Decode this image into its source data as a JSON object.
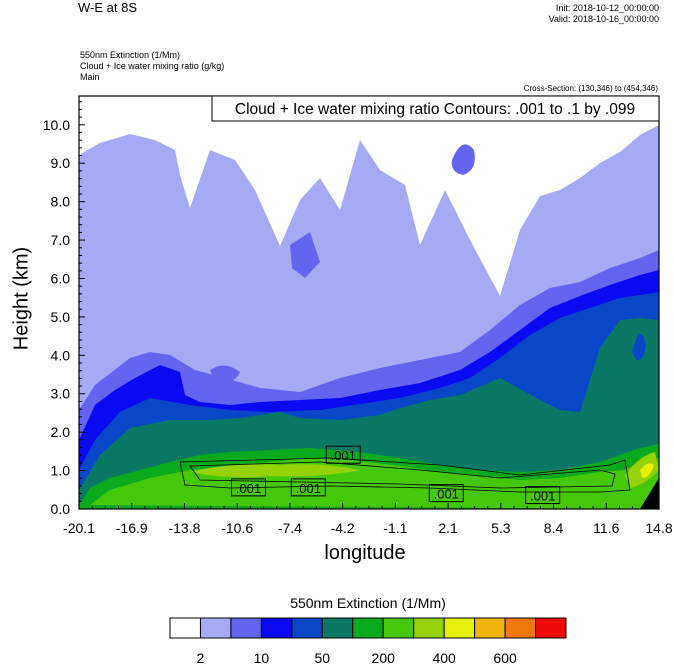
{
  "header": {
    "title": "W-E at 8S",
    "init": "Init: 2018-10-12_00:00:00",
    "valid": "Valid: 2018-10-16_00:00:00",
    "subtitle_lines": [
      "550nm Extinction   (1/Mm)",
      "Cloud + Ice water mixing ratio   (g/kg)",
      "Main"
    ],
    "cross_section": "Cross-Section: (130,346) to (454,346)"
  },
  "chart_data": {
    "type": "contour",
    "xlabel": "longitude",
    "ylabel": "Height (km)",
    "x_ticks": [
      "-20.1",
      "-16.9",
      "-13.8",
      "-10.6",
      "-7.4",
      "-4.2",
      "-1.1",
      "2.1",
      "5.3",
      "8.4",
      "11.6",
      "14.8"
    ],
    "y_ticks": [
      "0.0",
      "1.0",
      "2.0",
      "3.0",
      "4.0",
      "5.0",
      "6.0",
      "7.0",
      "8.0",
      "9.0",
      "10.0"
    ],
    "xlim": [
      -20.1,
      14.8
    ],
    "ylim": [
      0.0,
      10.75
    ],
    "contour_legend": "Cloud + Ice water mixing ratio Contours: .001 to .1 by .099",
    "contour_labels": [
      {
        "text": ".001",
        "lon": -4.2,
        "height": 1.4
      },
      {
        "text": ".001",
        "lon": -9.9,
        "height": 0.55
      },
      {
        "text": ".001",
        "lon": -6.3,
        "height": 0.55
      },
      {
        "text": ".001",
        "lon": 2.0,
        "height": 0.4
      },
      {
        "text": ".001",
        "lon": 7.8,
        "height": 0.35
      }
    ],
    "colorbar": {
      "title": "550nm Extinction  (1/Mm)",
      "colors": [
        "#ffffff",
        "#a6aaf5",
        "#6464f0",
        "#0a0af0",
        "#0a46c8",
        "#0a7864",
        "#0aaa1e",
        "#46c80a",
        "#96d20a",
        "#e6f00a",
        "#f0b40a",
        "#f0780a",
        "#f00a0a"
      ],
      "tick_labels": [
        "2",
        "10",
        "50",
        "200",
        "400",
        "600"
      ]
    }
  }
}
